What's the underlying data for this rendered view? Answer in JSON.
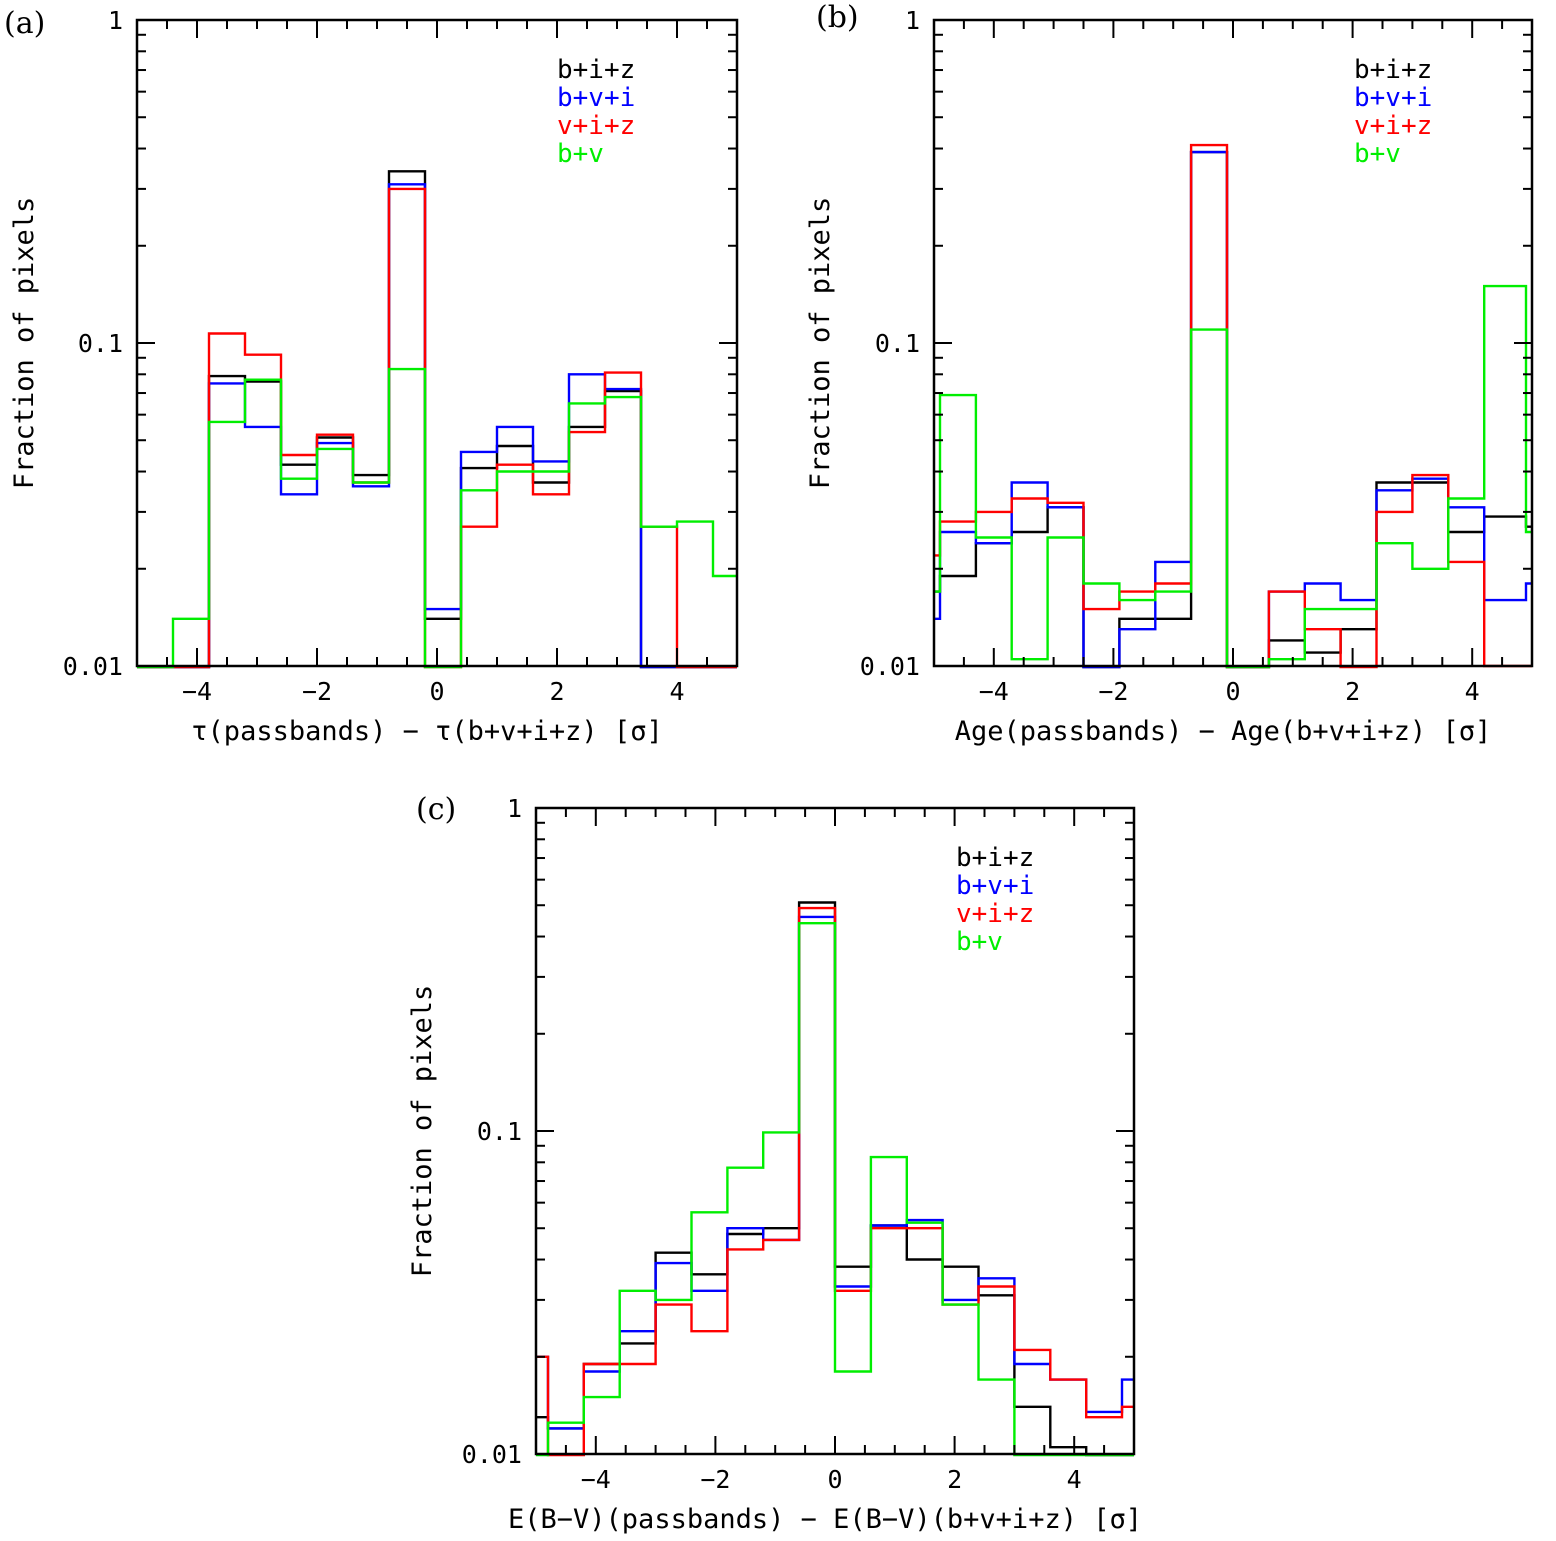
{
  "chart_data": [
    {
      "type": "line",
      "panel_label": "(a)",
      "xlabel": "τ(passbands) − τ(b+v+i+z) [σ]",
      "ylabel": "Fraction of pixels",
      "xlim": [
        -5,
        5
      ],
      "ylim": [
        0.01,
        1
      ],
      "yscale": "log",
      "xticks": [
        -4,
        -2,
        0,
        2,
        4
      ],
      "xtick_labels": [
        "−4",
        "−2",
        "0",
        "2",
        "4"
      ],
      "yticks": [
        0.01,
        0.1,
        1
      ],
      "ytick_labels": [
        "0.01",
        "0.1",
        "1"
      ],
      "legend_position": "top-right",
      "bin_edges": [
        -5,
        -4.4,
        -3.8,
        -3.2,
        -2.6,
        -2.0,
        -1.4,
        -0.8,
        -0.2,
        0.4,
        1.0,
        1.6,
        2.2,
        2.8,
        3.4,
        4.0,
        4.6,
        5.0
      ],
      "series": [
        {
          "name": "b+i+z",
          "color": "#000000",
          "values": [
            0.008,
            0.008,
            0.079,
            0.076,
            0.042,
            0.051,
            0.039,
            0.34,
            0.014,
            0.041,
            0.048,
            0.037,
            0.055,
            0.071,
            0.008,
            0.008,
            0.008
          ]
        },
        {
          "name": "b+v+i",
          "color": "#0000ff",
          "values": [
            0.008,
            0.008,
            0.075,
            0.055,
            0.034,
            0.049,
            0.036,
            0.31,
            0.015,
            0.046,
            0.055,
            0.043,
            0.08,
            0.072,
            0.008,
            0.008,
            0.008
          ]
        },
        {
          "name": "v+i+z",
          "color": "#ff0000",
          "values": [
            0.008,
            0.008,
            0.107,
            0.092,
            0.045,
            0.052,
            0.037,
            0.3,
            0.008,
            0.027,
            0.042,
            0.034,
            0.053,
            0.081,
            0.027,
            0.008,
            0.008
          ]
        },
        {
          "name": "b+v",
          "color": "#00ee00",
          "values": [
            0.008,
            0.014,
            0.057,
            0.077,
            0.038,
            0.047,
            0.037,
            0.083,
            0.008,
            0.035,
            0.04,
            0.04,
            0.065,
            0.068,
            0.027,
            0.028,
            0.019
          ]
        }
      ]
    },
    {
      "type": "line",
      "panel_label": "(b)",
      "xlabel": "Age(passbands) − Age(b+v+i+z) [σ]",
      "ylabel": "Fraction of pixels",
      "xlim": [
        -5,
        5
      ],
      "ylim": [
        0.01,
        1
      ],
      "yscale": "log",
      "xticks": [
        -4,
        -2,
        0,
        2,
        4
      ],
      "xtick_labels": [
        "−4",
        "−2",
        "0",
        "2",
        "4"
      ],
      "yticks": [
        0.01,
        0.1,
        1
      ],
      "ytick_labels": [
        "0.01",
        "0.1",
        "1"
      ],
      "legend_position": "top-right",
      "bin_edges": [
        -5,
        -4.9,
        -4.3,
        -3.7,
        -3.1,
        -2.5,
        -1.9,
        -1.3,
        -0.7,
        -0.1,
        0.5,
        0.6,
        1.2,
        1.8,
        2.4,
        3.0,
        3.6,
        4.2,
        4.9,
        5.0
      ],
      "series": [
        {
          "name": "b+i+z",
          "color": "#000000",
          "values": [
            0.017,
            0.019,
            0.024,
            0.026,
            0.031,
            0.008,
            0.014,
            0.014,
            0.39,
            0.008,
            0.008,
            0.012,
            0.011,
            0.013,
            0.037,
            0.037,
            0.026,
            0.029,
            0.027
          ]
        },
        {
          "name": "b+v+i",
          "color": "#0000ff",
          "values": [
            0.014,
            0.026,
            0.024,
            0.037,
            0.031,
            0.008,
            0.013,
            0.021,
            0.39,
            0.008,
            0.008,
            0.017,
            0.018,
            0.016,
            0.035,
            0.038,
            0.031,
            0.016,
            0.018
          ]
        },
        {
          "name": "v+i+z",
          "color": "#ff0000",
          "values": [
            0.022,
            0.028,
            0.03,
            0.033,
            0.032,
            0.015,
            0.017,
            0.018,
            0.41,
            0.008,
            0.008,
            0.017,
            0.013,
            0.008,
            0.03,
            0.039,
            0.021,
            0.01,
            0.01
          ]
        },
        {
          "name": "b+v",
          "color": "#00ee00",
          "values": [
            0.017,
            0.069,
            0.025,
            0.0105,
            0.025,
            0.018,
            0.016,
            0.017,
            0.11,
            0.008,
            0.008,
            0.0105,
            0.015,
            0.015,
            0.024,
            0.02,
            0.033,
            0.15,
            0.026
          ]
        }
      ]
    },
    {
      "type": "line",
      "panel_label": "(c)",
      "xlabel": "E(B−V)(passbands) − E(B−V)(b+v+i+z) [σ]",
      "ylabel": "Fraction of pixels",
      "xlim": [
        -5,
        5
      ],
      "ylim": [
        0.01,
        1
      ],
      "yscale": "log",
      "xticks": [
        -4,
        -2,
        0,
        2,
        4
      ],
      "xtick_labels": [
        "−4",
        "−2",
        "0",
        "2",
        "4"
      ],
      "yticks": [
        0.01,
        0.1,
        1
      ],
      "ytick_labels": [
        "0.01",
        "0.1",
        "1"
      ],
      "legend_position": "top-right",
      "bin_edges": [
        -5,
        -4.8,
        -4.2,
        -3.6,
        -3.0,
        -2.4,
        -1.8,
        -1.2,
        -0.6,
        0.0,
        0.6,
        1.2,
        1.8,
        2.4,
        3.0,
        3.6,
        4.2,
        4.8,
        5.0
      ],
      "series": [
        {
          "name": "b+i+z",
          "color": "#000000",
          "values": [
            0.013,
            0.012,
            0.019,
            0.022,
            0.042,
            0.036,
            0.048,
            0.05,
            0.51,
            0.038,
            0.051,
            0.04,
            0.038,
            0.031,
            0.014,
            0.0105,
            0.008,
            0.008
          ]
        },
        {
          "name": "b+v+i",
          "color": "#0000ff",
          "values": [
            0.02,
            0.012,
            0.018,
            0.024,
            0.039,
            0.032,
            0.05,
            0.046,
            0.46,
            0.033,
            0.051,
            0.053,
            0.03,
            0.035,
            0.019,
            0.017,
            0.0135,
            0.017
          ]
        },
        {
          "name": "v+i+z",
          "color": "#ff0000",
          "values": [
            0.02,
            0.008,
            0.019,
            0.019,
            0.029,
            0.024,
            0.043,
            0.046,
            0.49,
            0.032,
            0.05,
            0.05,
            0.029,
            0.033,
            0.021,
            0.017,
            0.013,
            0.014
          ]
        },
        {
          "name": "b+v",
          "color": "#00ee00",
          "values": [
            0.008,
            0.0125,
            0.015,
            0.032,
            0.03,
            0.056,
            0.077,
            0.099,
            0.44,
            0.018,
            0.083,
            0.052,
            0.029,
            0.017,
            0.008,
            0.008,
            0.008,
            0.008
          ]
        }
      ]
    }
  ]
}
